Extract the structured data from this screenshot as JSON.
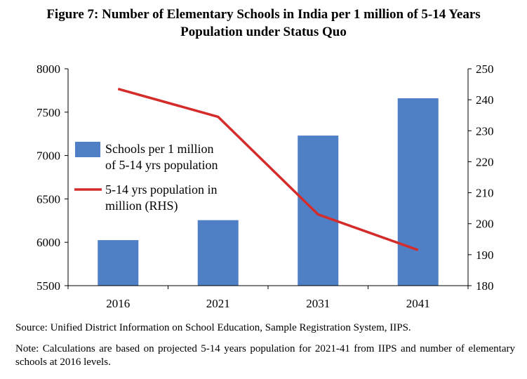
{
  "title": {
    "line1": "Figure 7: Number of Elementary Schools in India per 1 million of 5-14 Years",
    "line2": "Population under Status Quo"
  },
  "chart_data": {
    "type": "bar+line",
    "categories": [
      "2016",
      "2021",
      "2031",
      "2041"
    ],
    "series": [
      {
        "name_lines": [
          "Schools per 1 million",
          "of 5-14 yrs population"
        ],
        "type": "bar",
        "axis": "left",
        "color": "#4f7fc4",
        "values": [
          6025,
          6255,
          7230,
          7660
        ]
      },
      {
        "name_lines": [
          "5-14 yrs population in",
          "million (RHS)"
        ],
        "type": "line",
        "axis": "right",
        "color": "#d42b2b",
        "values": [
          243.5,
          234.5,
          203,
          191.5
        ]
      }
    ],
    "y_left": {
      "min": 5500,
      "max": 8000,
      "ticks": [
        "5500",
        "6000",
        "6500",
        "7000",
        "7500",
        "8000"
      ]
    },
    "y_right": {
      "min": 180,
      "max": 250,
      "ticks": [
        "180",
        "190",
        "200",
        "210",
        "220",
        "230",
        "240",
        "250"
      ]
    },
    "legend_position": "left-middle",
    "grid": false
  },
  "source": "Source: Unified District Information on School Education, Sample Registration System, IIPS.",
  "note": "Note: Calculations are based on projected 5-14 years population for 2021-41 from IIPS and number of elementary schools at 2016 levels."
}
